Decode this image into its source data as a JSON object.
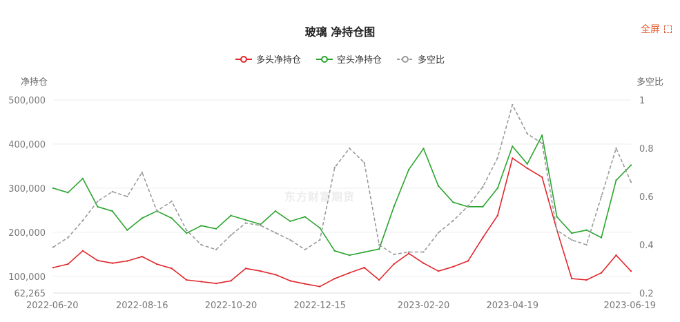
{
  "header": {
    "title": "玻璃 净持仓图",
    "fullscreen_label": "全屏"
  },
  "watermark": "东方财富期货",
  "chart_data": {
    "type": "line",
    "title": "玻璃 净持仓图",
    "ylabel_left": "净持仓",
    "ylabel_right": "多空比",
    "legend_position": "top-center",
    "ylim_left": [
      62265,
      500000
    ],
    "yticks_left": [
      "62,265",
      "100,000",
      "200,000",
      "300,000",
      "400,000",
      "500,000"
    ],
    "yticks_left_values": [
      62265,
      100000,
      200000,
      300000,
      400000,
      500000
    ],
    "ylim_right": [
      0.2,
      1.0
    ],
    "yticks_right": [
      "0.2",
      "0.4",
      "0.6",
      "0.8",
      "1"
    ],
    "yticks_right_values": [
      0.2,
      0.4,
      0.6,
      0.8,
      1.0
    ],
    "x_dates": [
      "2022-06-20",
      "2022-06-30",
      "2022-07-10",
      "2022-07-20",
      "2022-07-31",
      "2022-08-10",
      "2022-08-16",
      "2022-08-25",
      "2022-09-05",
      "2022-09-15",
      "2022-09-26",
      "2022-10-10",
      "2022-10-20",
      "2022-10-31",
      "2022-11-10",
      "2022-11-21",
      "2022-12-01",
      "2022-12-09",
      "2022-12-15",
      "2022-12-22",
      "2022-12-30",
      "2023-01-06",
      "2023-01-13",
      "2023-01-31",
      "2023-02-10",
      "2023-02-20",
      "2023-03-01",
      "2023-03-10",
      "2023-03-20",
      "2023-03-31",
      "2023-04-10",
      "2023-04-19",
      "2023-04-28",
      "2023-05-10",
      "2023-05-19",
      "2023-05-26",
      "2023-06-02",
      "2023-06-09",
      "2023-06-16",
      "2023-06-19"
    ],
    "xtick_labels": [
      "2022-06-20",
      "2022-08-16",
      "2022-10-20",
      "2022-12-15",
      "2023-02-20",
      "2023-04-19",
      "2023-06-19"
    ],
    "xtick_indices": [
      0,
      6,
      12,
      18,
      25,
      31,
      39
    ],
    "series": [
      {
        "name": "多头净持仓",
        "axis": "left",
        "color": "#e0262b",
        "values": [
          120000,
          128000,
          158000,
          136000,
          130000,
          135000,
          145000,
          128000,
          118000,
          92000,
          88000,
          84000,
          90000,
          118000,
          112000,
          104000,
          90000,
          83000,
          77000,
          95000,
          108000,
          120000,
          92000,
          128000,
          152000,
          130000,
          112000,
          122000,
          135000,
          188000,
          238000,
          368000,
          345000,
          325000,
          205000,
          95000,
          92000,
          108000,
          148000,
          112000
        ]
      },
      {
        "name": "空头净持仓",
        "axis": "left",
        "color": "#2aa52e",
        "values": [
          300000,
          290000,
          322000,
          258000,
          248000,
          205000,
          232000,
          248000,
          232000,
          198000,
          215000,
          208000,
          238000,
          228000,
          218000,
          248000,
          225000,
          235000,
          210000,
          158000,
          148000,
          155000,
          162000,
          258000,
          342000,
          390000,
          305000,
          268000,
          258000,
          258000,
          300000,
          395000,
          355000,
          420000,
          235000,
          198000,
          205000,
          188000,
          318000,
          352000
        ]
      },
      {
        "name": "多空比",
        "axis": "right",
        "color": "#9a9a9a",
        "dashed": true,
        "values": [
          0.39,
          0.43,
          0.5,
          0.58,
          0.62,
          0.6,
          0.7,
          0.54,
          0.58,
          0.46,
          0.4,
          0.38,
          0.44,
          0.49,
          0.48,
          0.45,
          0.42,
          0.38,
          0.42,
          0.72,
          0.8,
          0.74,
          0.4,
          0.36,
          0.37,
          0.37,
          0.45,
          0.5,
          0.56,
          0.64,
          0.76,
          0.98,
          0.86,
          0.82,
          0.46,
          0.42,
          0.4,
          0.6,
          0.8,
          0.66
        ]
      }
    ]
  }
}
